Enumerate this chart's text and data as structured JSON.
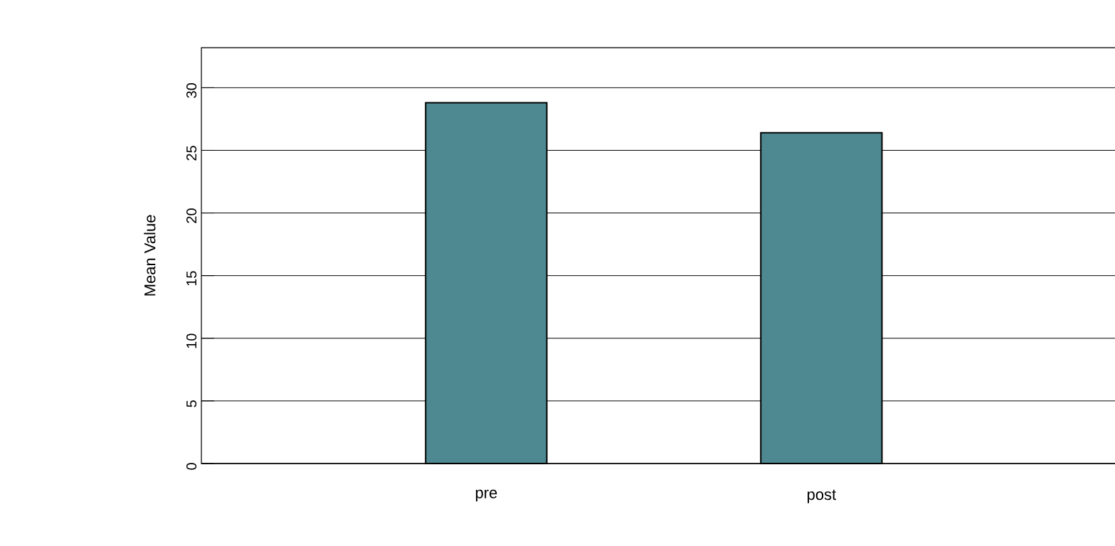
{
  "chart_data": {
    "type": "bar",
    "ylabel": "Mean Value",
    "categories": [
      "pre",
      "post"
    ],
    "values": [
      28.8,
      26.4
    ],
    "color": "#4e8890",
    "ylim": [
      0,
      33.2
    ],
    "yticks": [
      0,
      5,
      10,
      15,
      20,
      25,
      30
    ],
    "grid": "y"
  }
}
